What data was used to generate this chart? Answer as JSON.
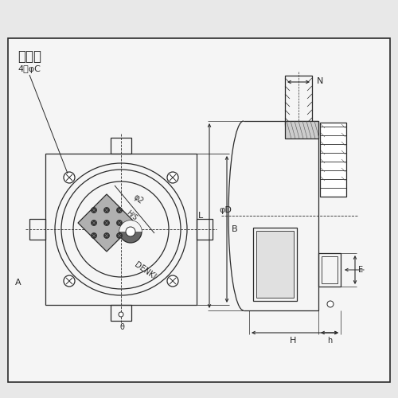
{
  "bg_color": "#e8e8e8",
  "inner_bg": "#f5f5f5",
  "line_color": "#2a2a2a",
  "hatch_color": "#2a2a2a",
  "title": "寸法図",
  "label_4phiC": "4－φC",
  "label_A": "A",
  "label_B": "B",
  "label_D": "φD",
  "label_L": "L",
  "label_N": "N",
  "label_H": "H",
  "label_h": "h",
  "label_E": "E",
  "label_phi2": "φ2",
  "label_HS": "H/S",
  "label_DENKI": "DENKI",
  "label_theta": "θ"
}
